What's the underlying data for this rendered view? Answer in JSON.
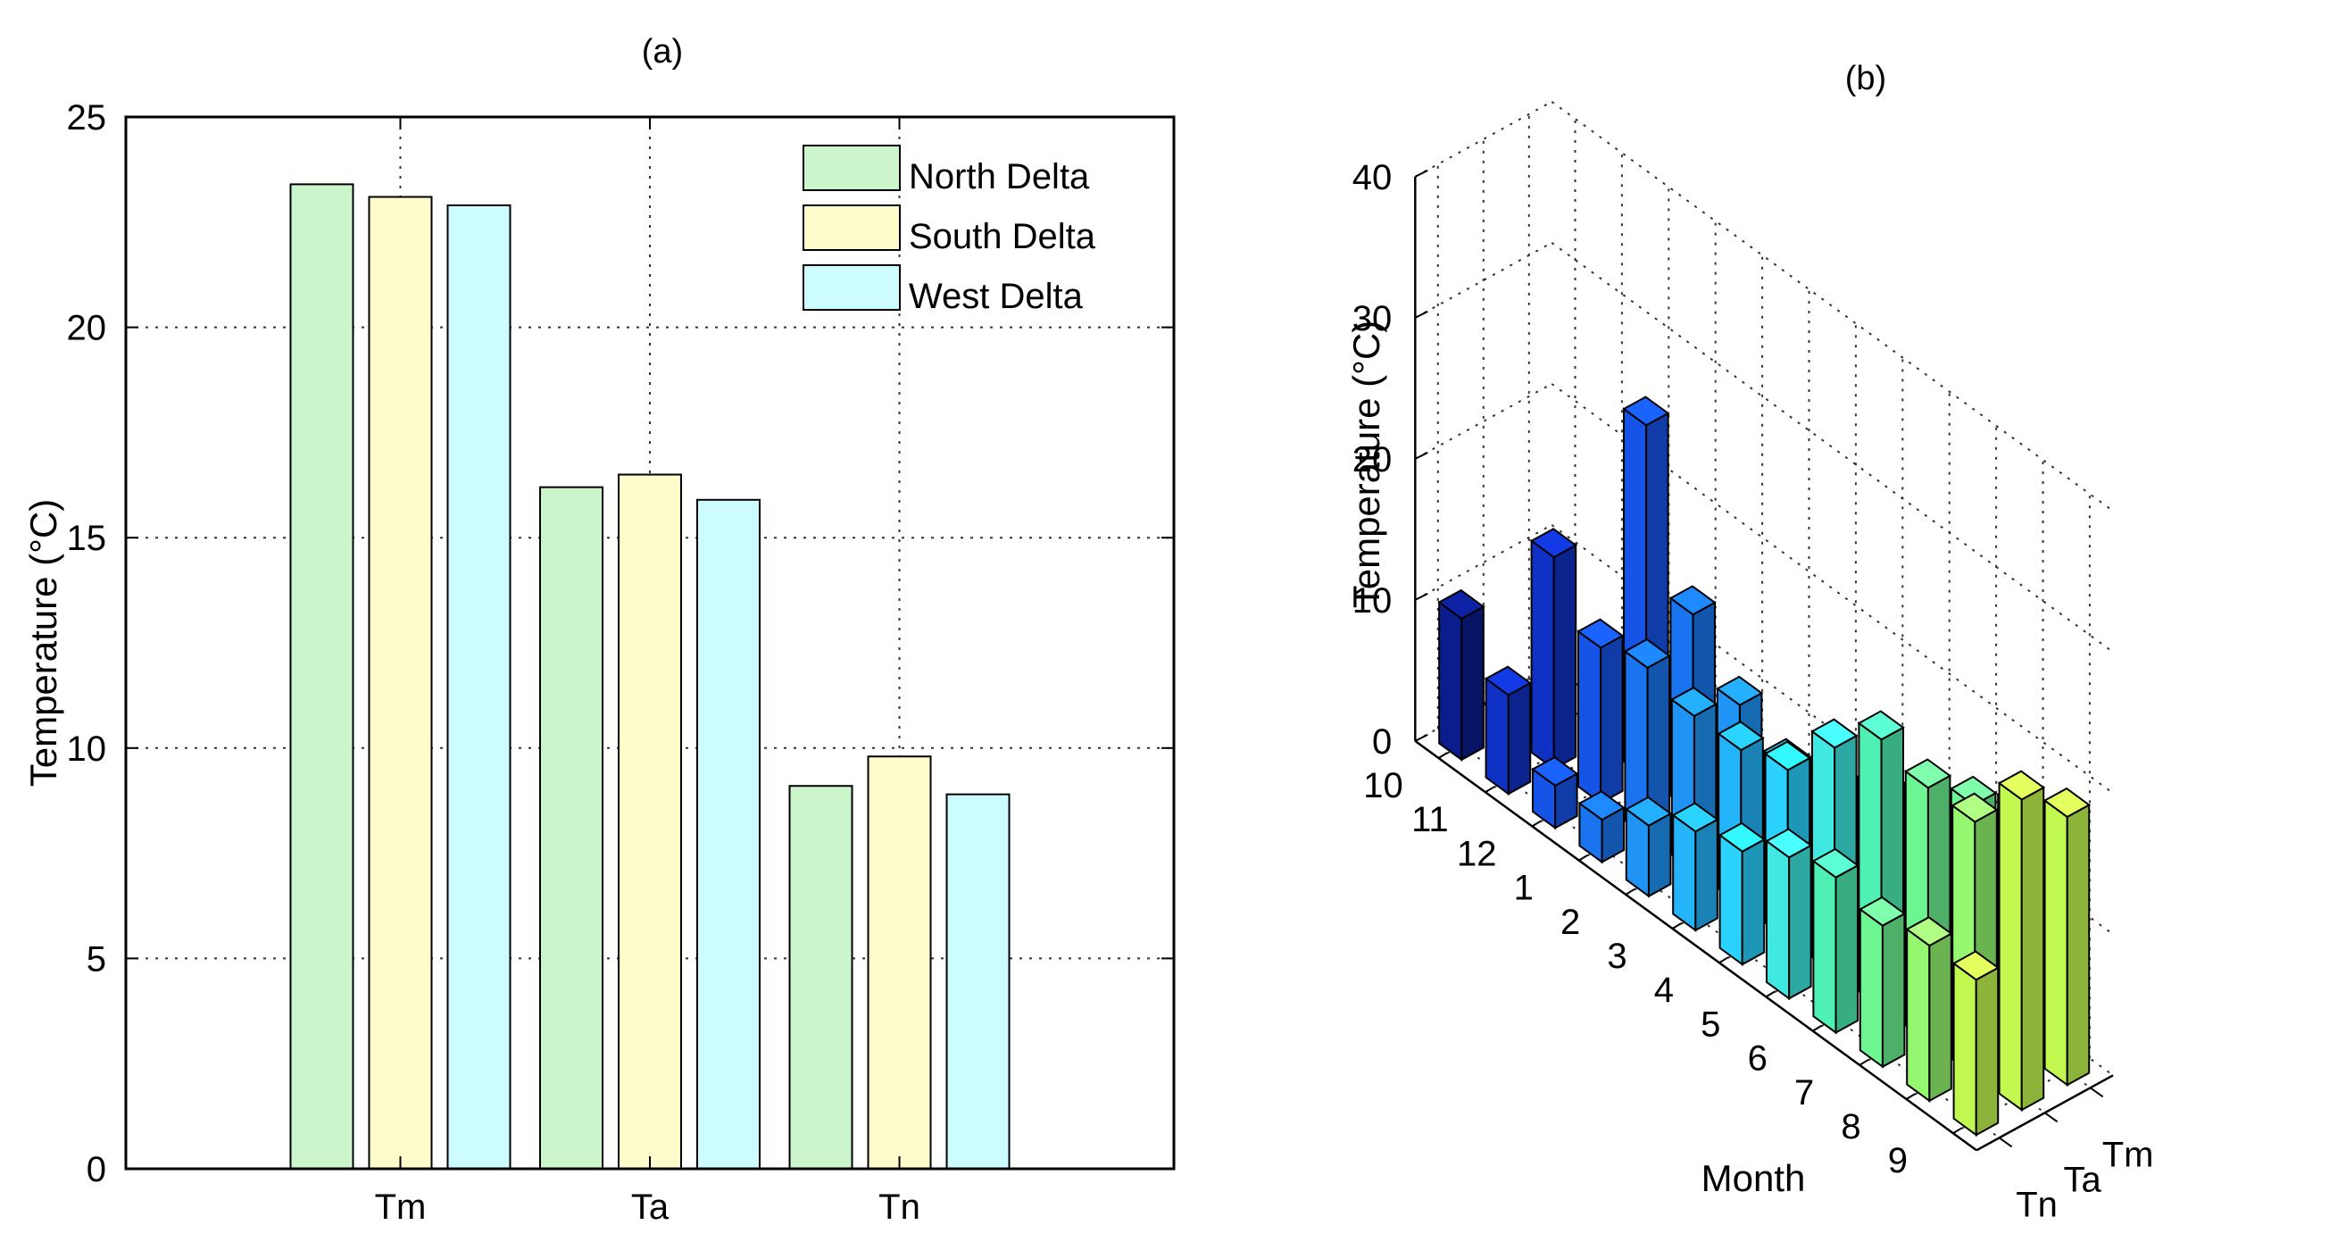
{
  "chart_data": [
    {
      "type": "bar",
      "title": "(a)",
      "xlabel": "",
      "ylabel": "Temperature (°C)",
      "ylim": [
        0,
        25
      ],
      "yticks": [
        0,
        5,
        10,
        15,
        20,
        25
      ],
      "grid": true,
      "legend_position": "top-right",
      "categories": [
        "Tm",
        "Ta",
        "Tn"
      ],
      "series": [
        {
          "name": "North Delta",
          "values": [
            23.4,
            16.2,
            9.1
          ],
          "color": "#ccf5cc"
        },
        {
          "name": "South Delta",
          "values": [
            23.1,
            16.5,
            9.8
          ],
          "color": "#fffccc"
        },
        {
          "name": "West Delta",
          "values": [
            22.9,
            15.9,
            8.9
          ],
          "color": "#ccfcff"
        }
      ]
    },
    {
      "type": "bar3d",
      "title": "(b)",
      "xlabel": "Month",
      "ylabel": "",
      "zlabel": "Temperature (°C)",
      "zlim": [
        0,
        40
      ],
      "zticks": [
        0,
        10,
        20,
        30,
        40
      ],
      "grid": true,
      "months": [
        "10",
        "11",
        "12",
        "1",
        "2",
        "3",
        "4",
        "5",
        "6",
        "7",
        "8",
        "9"
      ],
      "variables": [
        "Tn",
        "Ta",
        "Tm"
      ],
      "series": [
        {
          "name": "Tn",
          "values": [
            10,
            7,
            3,
            3,
            5,
            7,
            8,
            10,
            11,
            10,
            11,
            11
          ]
        },
        {
          "name": "Ta",
          "values": [
            0,
            15,
            11,
            12,
            11,
            11,
            12,
            16,
            19,
            18,
            18,
            22
          ]
        },
        {
          "name": "Tm",
          "values": [
            0,
            0,
            25,
            14,
            10,
            8,
            10,
            11,
            13,
            15,
            17,
            19
          ]
        }
      ],
      "colors": [
        "#0b1d8c",
        "#0f32c4",
        "#1654e8",
        "#1a74f0",
        "#1f94f5",
        "#24b4fa",
        "#2ad2fd",
        "#3fe8e0",
        "#4ff0b4",
        "#6cf591",
        "#95f870",
        "#c2f950"
      ]
    }
  ]
}
